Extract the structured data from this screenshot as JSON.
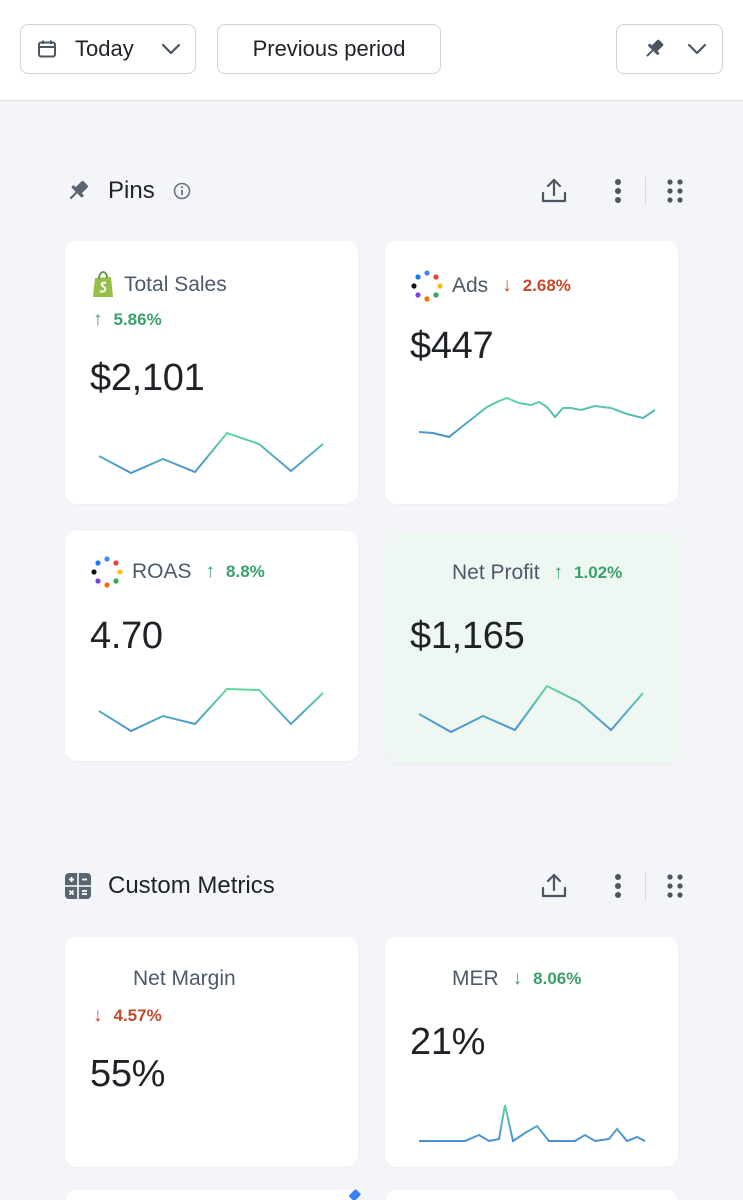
{
  "toolbar": {
    "date_label": "Today",
    "compare_label": "Previous period",
    "icons": {
      "calendar": "calendar-icon",
      "pin": "pin-icon",
      "chevron": "chevron-down-icon"
    }
  },
  "sections": {
    "pins": {
      "title": "Pins"
    },
    "custom": {
      "title": "Custom Metrics"
    }
  },
  "colors": {
    "up": "#3aa06c",
    "down": "#c44a2c",
    "spark_start": "#4a8fd6",
    "spark_end": "#5fd6a0",
    "highlight_bg": "#eef7f1"
  },
  "cards": [
    {
      "name": "Total Sales",
      "source_icon": "shopify-icon",
      "delta": "5.86%",
      "direction": "up",
      "value": "$2,101"
    },
    {
      "name": "Ads",
      "source_icon": "multi-dot-icon",
      "delta": "2.68%",
      "direction": "down",
      "value": "$447"
    },
    {
      "name": "ROAS",
      "source_icon": "multi-dot-icon",
      "delta": "8.8%",
      "direction": "up",
      "value": "4.70"
    },
    {
      "name": "Net Profit",
      "source_icon": "",
      "delta": "1.02%",
      "direction": "up",
      "value": "$1,165"
    },
    {
      "name": "Net Margin",
      "source_icon": "",
      "delta": "4.57%",
      "direction": "down",
      "value": "55%"
    },
    {
      "name": "MER",
      "source_icon": "",
      "delta": "8.06%",
      "direction": "down",
      "value": "21%"
    }
  ],
  "arrows": {
    "up": "↑",
    "down": "↓"
  }
}
